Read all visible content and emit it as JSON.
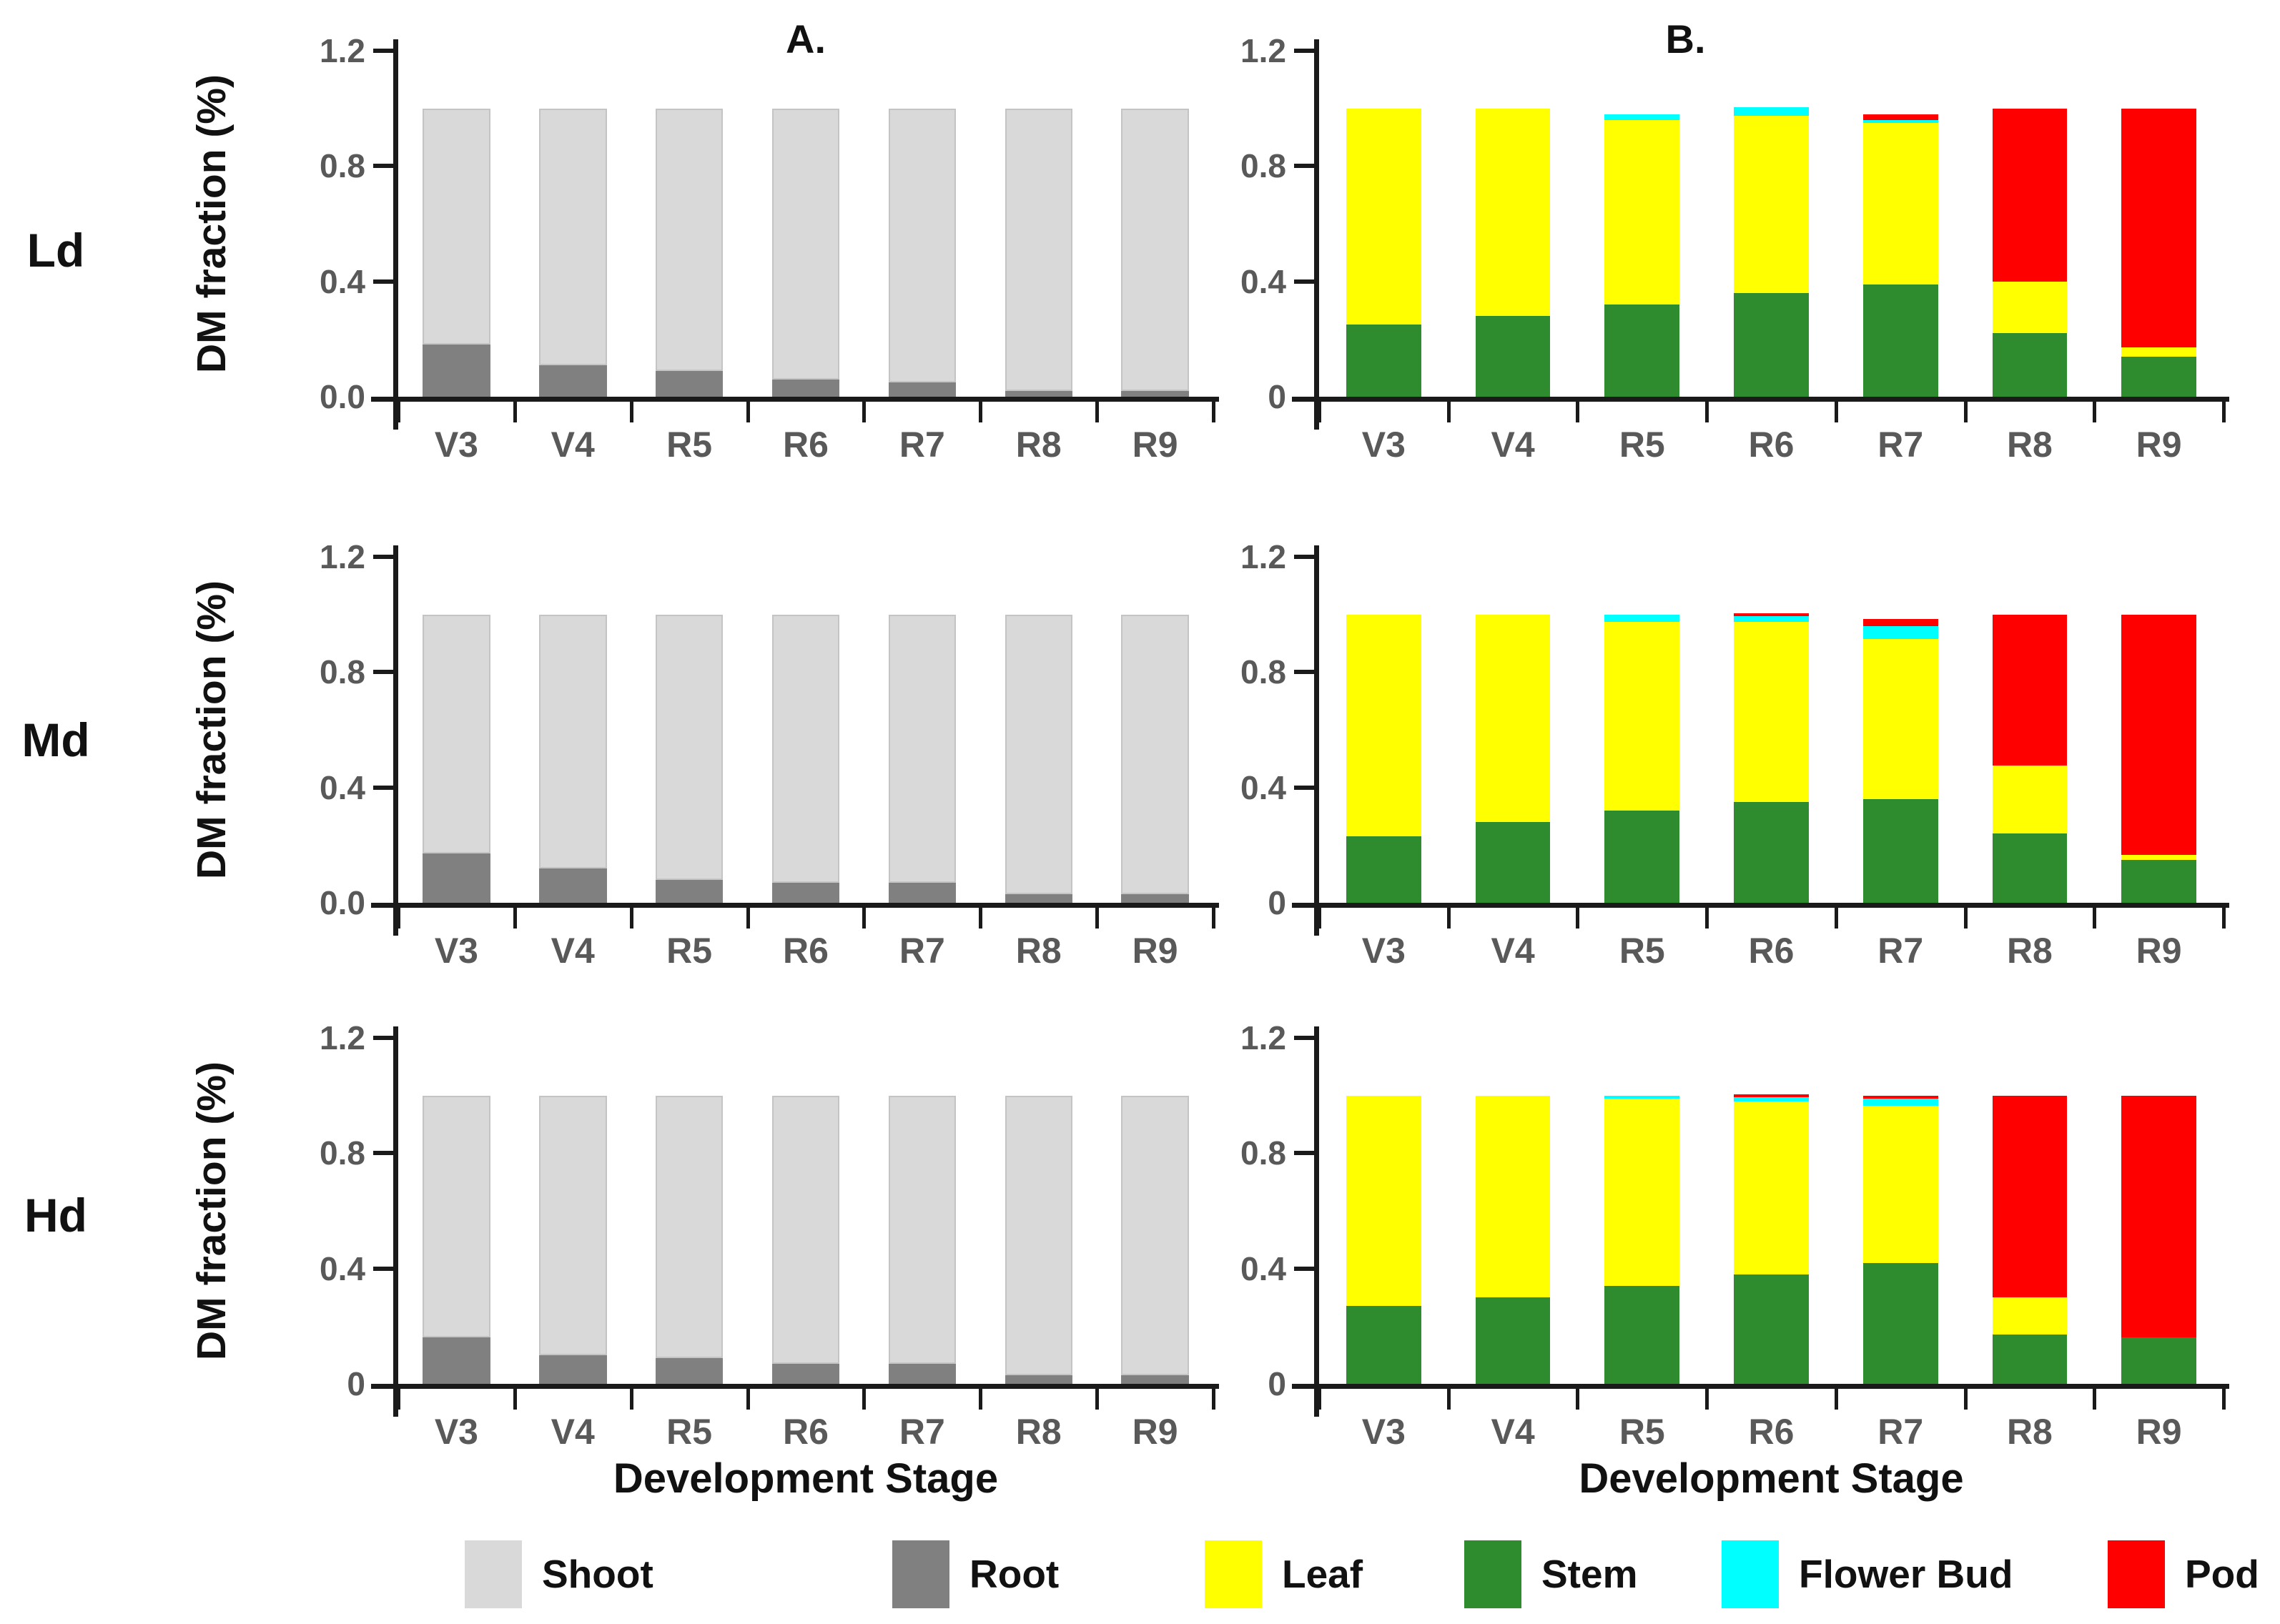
{
  "figure": {
    "ylabel": "DM fraction (%)",
    "xlabel": "Development Stage",
    "panel_titles": {
      "A": "A.",
      "B": "B."
    },
    "rows": [
      {
        "label": "Ld"
      },
      {
        "label": "Md"
      },
      {
        "label": "Hd"
      }
    ],
    "categories": [
      "V3",
      "V4",
      "R5",
      "R6",
      "R7",
      "R8",
      "R9"
    ]
  },
  "colors": {
    "shoot": "#d9d9d9",
    "shoot_border": "#c4c4c4",
    "root": "#808080",
    "leaf": "#ffff00",
    "stem": "#2e8b2e",
    "flower_bud": "#00ffff",
    "pod": "#ff0000",
    "axis": "#1a1a1a",
    "tick_label": "#595959"
  },
  "legend": {
    "items": [
      {
        "label": "Shoot",
        "color_key": "shoot"
      },
      {
        "label": "Root",
        "color_key": "root"
      },
      {
        "label": "Leaf",
        "color_key": "leaf"
      },
      {
        "label": "Stem",
        "color_key": "stem"
      },
      {
        "label": "Flower Bud",
        "color_key": "flower_bud"
      },
      {
        "label": "Pod",
        "color_key": "pod"
      }
    ]
  },
  "chart_data": [
    {
      "id": "Ld-A",
      "row": "Ld",
      "panel": "A",
      "type": "bar",
      "stacked": true,
      "title": "A.",
      "ylim": [
        0,
        1.2
      ],
      "ytick_values": [
        0,
        0.4,
        0.8,
        1.2
      ],
      "ytick_labels": [
        "0.0",
        "0.4",
        "0.8",
        "1.2"
      ],
      "categories": [
        "V3",
        "V4",
        "R5",
        "R6",
        "R7",
        "R8",
        "R9"
      ],
      "series": [
        {
          "name": "Root",
          "color_key": "root",
          "values": [
            0.18,
            0.11,
            0.09,
            0.06,
            0.05,
            0.02,
            0.02
          ]
        },
        {
          "name": "Shoot",
          "color_key": "shoot",
          "border_key": "shoot_border",
          "values": [
            0.82,
            0.89,
            0.91,
            0.94,
            0.95,
            0.98,
            0.98
          ]
        }
      ]
    },
    {
      "id": "Ld-B",
      "row": "Ld",
      "panel": "B",
      "type": "bar",
      "stacked": true,
      "title": "B.",
      "ylim": [
        0,
        1.2
      ],
      "ytick_values": [
        0,
        0.4,
        0.8,
        1.2
      ],
      "ytick_labels": [
        "0",
        "0.4",
        "0.8",
        "1.2"
      ],
      "categories": [
        "V3",
        "V4",
        "R5",
        "R6",
        "R7",
        "R8",
        "R9"
      ],
      "series": [
        {
          "name": "Stem",
          "color_key": "stem",
          "values": [
            0.25,
            0.28,
            0.32,
            0.36,
            0.39,
            0.22,
            0.14
          ]
        },
        {
          "name": "Leaf",
          "color_key": "leaf",
          "values": [
            0.75,
            0.72,
            0.64,
            0.615,
            0.56,
            0.18,
            0.03
          ]
        },
        {
          "name": "Flower Bud",
          "color_key": "flower_bud",
          "values": [
            0,
            0,
            0.02,
            0.03,
            0.01,
            0,
            0
          ]
        },
        {
          "name": "Pod",
          "color_key": "pod",
          "values": [
            0,
            0,
            0,
            0,
            0.02,
            0.6,
            0.83
          ]
        }
      ]
    },
    {
      "id": "Md-A",
      "row": "Md",
      "panel": "A",
      "type": "bar",
      "stacked": true,
      "title": "",
      "ylim": [
        0,
        1.2
      ],
      "ytick_values": [
        0,
        0.4,
        0.8,
        1.2
      ],
      "ytick_labels": [
        "0.0",
        "0.4",
        "0.8",
        "1.2"
      ],
      "categories": [
        "V3",
        "V4",
        "R5",
        "R6",
        "R7",
        "R8",
        "R9"
      ],
      "series": [
        {
          "name": "Root",
          "color_key": "root",
          "values": [
            0.17,
            0.12,
            0.08,
            0.07,
            0.07,
            0.03,
            0.03
          ]
        },
        {
          "name": "Shoot",
          "color_key": "shoot",
          "border_key": "shoot_border",
          "values": [
            0.83,
            0.88,
            0.92,
            0.93,
            0.93,
            0.97,
            0.97
          ]
        }
      ]
    },
    {
      "id": "Md-B",
      "row": "Md",
      "panel": "B",
      "type": "bar",
      "stacked": true,
      "title": "",
      "ylim": [
        0,
        1.2
      ],
      "ytick_values": [
        0,
        0.4,
        0.8,
        1.2
      ],
      "ytick_labels": [
        "0",
        "0.4",
        "0.8",
        "1.2"
      ],
      "categories": [
        "V3",
        "V4",
        "R5",
        "R6",
        "R7",
        "R8",
        "R9"
      ],
      "series": [
        {
          "name": "Stem",
          "color_key": "stem",
          "values": [
            0.23,
            0.28,
            0.32,
            0.35,
            0.36,
            0.24,
            0.15
          ]
        },
        {
          "name": "Leaf",
          "color_key": "leaf",
          "values": [
            0.77,
            0.72,
            0.655,
            0.625,
            0.555,
            0.235,
            0.015
          ]
        },
        {
          "name": "Flower Bud",
          "color_key": "flower_bud",
          "values": [
            0,
            0,
            0.025,
            0.02,
            0.045,
            0,
            0
          ]
        },
        {
          "name": "Pod",
          "color_key": "pod",
          "values": [
            0,
            0,
            0,
            0.01,
            0.025,
            0.525,
            0.835
          ]
        }
      ]
    },
    {
      "id": "Hd-A",
      "row": "Hd",
      "panel": "A",
      "type": "bar",
      "stacked": true,
      "title": "",
      "ylim": [
        0,
        1.2
      ],
      "ytick_values": [
        0,
        0.4,
        0.8,
        1.2
      ],
      "ytick_labels": [
        "0",
        "0.4",
        "0.8",
        "1.2"
      ],
      "categories": [
        "V3",
        "V4",
        "R5",
        "R6",
        "R7",
        "R8",
        "R9"
      ],
      "series": [
        {
          "name": "Root",
          "color_key": "root",
          "values": [
            0.16,
            0.1,
            0.09,
            0.07,
            0.07,
            0.03,
            0.03
          ]
        },
        {
          "name": "Shoot",
          "color_key": "shoot",
          "border_key": "shoot_border",
          "values": [
            0.84,
            0.9,
            0.91,
            0.93,
            0.93,
            0.97,
            0.97
          ]
        }
      ]
    },
    {
      "id": "Hd-B",
      "row": "Hd",
      "panel": "B",
      "type": "bar",
      "stacked": true,
      "title": "",
      "ylim": [
        0,
        1.2
      ],
      "ytick_values": [
        0,
        0.4,
        0.8,
        1.2
      ],
      "ytick_labels": [
        "0",
        "0.4",
        "0.8",
        "1.2"
      ],
      "categories": [
        "V3",
        "V4",
        "R5",
        "R6",
        "R7",
        "R8",
        "R9"
      ],
      "series": [
        {
          "name": "Stem",
          "color_key": "stem",
          "values": [
            0.27,
            0.3,
            0.34,
            0.38,
            0.42,
            0.17,
            0.16
          ]
        },
        {
          "name": "Leaf",
          "color_key": "leaf",
          "values": [
            0.73,
            0.7,
            0.65,
            0.6,
            0.545,
            0.13,
            0
          ]
        },
        {
          "name": "Flower Bud",
          "color_key": "flower_bud",
          "values": [
            0,
            0,
            0.01,
            0.015,
            0.025,
            0,
            0
          ]
        },
        {
          "name": "Pod",
          "color_key": "pod",
          "values": [
            0,
            0,
            0,
            0.01,
            0.01,
            0.7,
            0.84
          ]
        }
      ]
    }
  ]
}
